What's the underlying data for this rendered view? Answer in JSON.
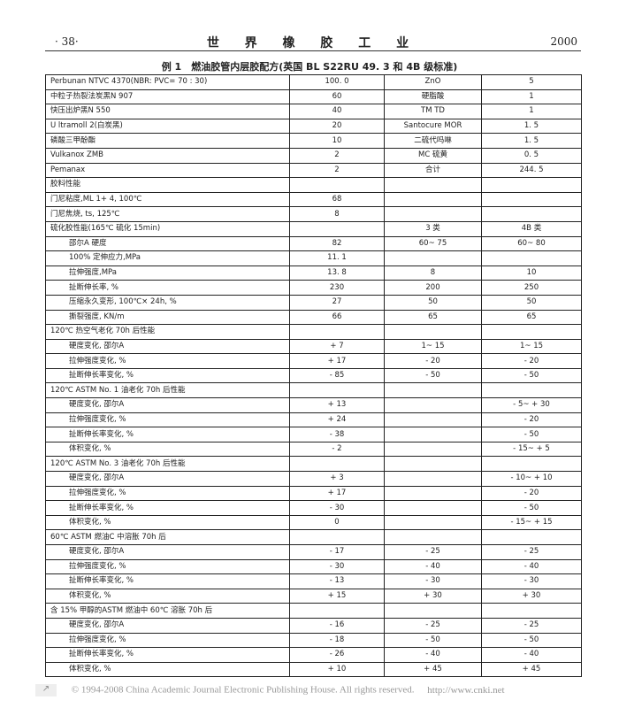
{
  "header": {
    "page_number": "· 38·",
    "journal_title": "世 界 橡 胶 工 业",
    "year": "2000"
  },
  "caption": "例 1　燃油胶管内层胶配方(英国 BL S22RU 49. 3 和 4B 级标准)",
  "rows": [
    {
      "label": "Perbunan NTVC 4370(NBR: PVC= 70 : 30)",
      "c1": "100. 0",
      "c2": "ZnO",
      "c3": "5",
      "indent": false
    },
    {
      "label": "中粒子热裂法炭黑N 907",
      "c1": "60",
      "c2": "硬脂酸",
      "c3": "1",
      "indent": false
    },
    {
      "label": "快压出炉黑N 550",
      "c1": "40",
      "c2": "TM TD",
      "c3": "1",
      "indent": false
    },
    {
      "label": "U ltramoll 2(白炭黑)",
      "c1": "20",
      "c2": "Santocure MOR",
      "c3": "1. 5",
      "indent": false
    },
    {
      "label": "磷酸三甲酚酯",
      "c1": "10",
      "c2": "二硫代吗啉",
      "c3": "1. 5",
      "indent": false
    },
    {
      "label": "Vulkanox ZMB",
      "c1": "2",
      "c2": "MC 硫黄",
      "c3": "0. 5",
      "indent": false
    },
    {
      "label": "Pemanax",
      "c1": "2",
      "c2": "合计",
      "c3": "244. 5",
      "indent": false
    },
    {
      "label": "胶料性能",
      "c1": "",
      "c2": "",
      "c3": "",
      "indent": false
    },
    {
      "label": "门尼粘度,ML 1+ 4, 100℃",
      "c1": "68",
      "c2": "",
      "c3": "",
      "indent": false
    },
    {
      "label": "门尼焦烧, ts, 125℃",
      "c1": "8",
      "c2": "",
      "c3": "",
      "indent": false
    },
    {
      "label": "硫化胶性能(165℃ 硫化 15min)",
      "c1": "",
      "c2": "3 类",
      "c3": "4B 类",
      "indent": false
    },
    {
      "label": "邵尔A 硬度",
      "c1": "82",
      "c2": "60~ 75",
      "c3": "60~ 80",
      "indent": true
    },
    {
      "label": "100% 定伸应力,MPa",
      "c1": "11. 1",
      "c2": "",
      "c3": "",
      "indent": true
    },
    {
      "label": "拉伸强度,MPa",
      "c1": "13. 8",
      "c2": "8",
      "c3": "10",
      "indent": true
    },
    {
      "label": "扯断伸长率, %",
      "c1": "230",
      "c2": "200",
      "c3": "250",
      "indent": true
    },
    {
      "label": "压缩永久变形, 100℃× 24h, %",
      "c1": "27",
      "c2": "50",
      "c3": "50",
      "indent": true
    },
    {
      "label": "撕裂强度, KN/m",
      "c1": "66",
      "c2": "65",
      "c3": "65",
      "indent": true
    },
    {
      "label": "120℃ 热空气老化 70h 后性能",
      "c1": "",
      "c2": "",
      "c3": "",
      "indent": false
    },
    {
      "label": "硬度变化, 邵尔A",
      "c1": "+ 7",
      "c2": "1~ 15",
      "c3": "1~ 15",
      "indent": true
    },
    {
      "label": "拉伸强度变化, %",
      "c1": "+ 17",
      "c2": "- 20",
      "c3": "- 20",
      "indent": true
    },
    {
      "label": "扯断伸长率变化, %",
      "c1": "- 85",
      "c2": "- 50",
      "c3": "- 50",
      "indent": true
    },
    {
      "label": "120℃ ASTM No. 1 油老化 70h 后性能",
      "c1": "",
      "c2": "",
      "c3": "",
      "indent": false
    },
    {
      "label": "硬度变化, 邵尔A",
      "c1": "+ 13",
      "c2": "",
      "c3": "- 5~ + 30",
      "indent": true
    },
    {
      "label": "拉伸强度变化, %",
      "c1": "+ 24",
      "c2": "",
      "c3": "- 20",
      "indent": true
    },
    {
      "label": "扯断伸长率变化, %",
      "c1": "- 38",
      "c2": "",
      "c3": "- 50",
      "indent": true
    },
    {
      "label": "体积变化, %",
      "c1": "- 2",
      "c2": "",
      "c3": "- 15~ + 5",
      "indent": true
    },
    {
      "label": "120℃ ASTM No. 3 油老化 70h 后性能",
      "c1": "",
      "c2": "",
      "c3": "",
      "indent": false
    },
    {
      "label": "硬度变化, 邵尔A",
      "c1": "+ 3",
      "c2": "",
      "c3": "- 10~ + 10",
      "indent": true
    },
    {
      "label": "拉伸强度变化, %",
      "c1": "+ 17",
      "c2": "",
      "c3": "- 20",
      "indent": true
    },
    {
      "label": "扯断伸长率变化, %",
      "c1": "- 30",
      "c2": "",
      "c3": "- 50",
      "indent": true
    },
    {
      "label": "体积变化, %",
      "c1": "0",
      "c2": "",
      "c3": "- 15~ + 15",
      "indent": true
    },
    {
      "label": "60℃ ASTM 燃油C 中溶胀 70h 后",
      "c1": "",
      "c2": "",
      "c3": "",
      "indent": false
    },
    {
      "label": "硬度变化, 邵尔A",
      "c1": "- 17",
      "c2": "- 25",
      "c3": "- 25",
      "indent": true
    },
    {
      "label": "拉伸强度变化, %",
      "c1": "- 30",
      "c2": "- 40",
      "c3": "- 40",
      "indent": true
    },
    {
      "label": "扯断伸长率变化, %",
      "c1": "- 13",
      "c2": "- 30",
      "c3": "- 30",
      "indent": true
    },
    {
      "label": "体积变化, %",
      "c1": "+ 15",
      "c2": "+ 30",
      "c3": "+ 30",
      "indent": true
    },
    {
      "label": "含 15% 甲醇的ASTM 燃油中 60℃ 溶胀 70h 后",
      "c1": "",
      "c2": "",
      "c3": "",
      "indent": false
    },
    {
      "label": "硬度变化, 邵尔A",
      "c1": "- 16",
      "c2": "- 25",
      "c3": "- 25",
      "indent": true
    },
    {
      "label": "拉伸强度变化, %",
      "c1": "- 18",
      "c2": "- 50",
      "c3": "- 50",
      "indent": true
    },
    {
      "label": "扯断伸长率变化, %",
      "c1": "- 26",
      "c2": "- 40",
      "c3": "- 40",
      "indent": true
    },
    {
      "label": "体积变化, %",
      "c1": "+ 10",
      "c2": "+ 45",
      "c3": "+ 45",
      "indent": true
    }
  ],
  "footer": {
    "copyright": "© 1994-2008 China Academic Journal Electronic Publishing House. All rights reserved.",
    "url": "http://www.cnki.net"
  }
}
